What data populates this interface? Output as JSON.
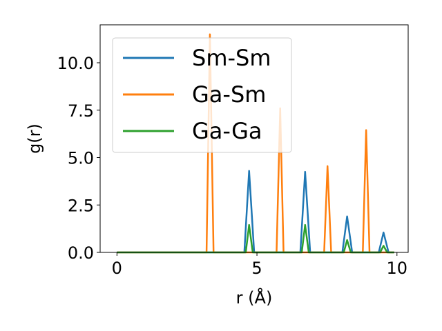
{
  "chart_data": {
    "type": "line",
    "title": "",
    "xlabel": "r (Å)",
    "ylabel": "g(r)",
    "xlim": [
      -0.6,
      10.4
    ],
    "ylim": [
      0,
      12.0
    ],
    "xticks": [
      0,
      5,
      10
    ],
    "xtick_labels": [
      "0",
      "5",
      "10"
    ],
    "yticks": [
      0.0,
      2.5,
      5.0,
      7.5,
      10.0
    ],
    "ytick_labels": [
      "0.0",
      "2.5",
      "5.0",
      "7.5",
      "10.0"
    ],
    "grid": false,
    "legend_position": "top-left",
    "series": [
      {
        "name": "Sm-Sm",
        "color": "#1f77b4",
        "x": [
          0,
          4.55,
          4.72,
          4.9,
          6.55,
          6.72,
          6.9,
          8.05,
          8.22,
          8.4,
          9.35,
          9.52,
          9.7,
          9.9
        ],
        "y": [
          0,
          0,
          4.3,
          0,
          0,
          4.25,
          0,
          0,
          1.9,
          0,
          0,
          1.05,
          0,
          0
        ]
      },
      {
        "name": "Ga-Sm",
        "color": "#ff7f0e",
        "x": [
          0,
          3.2,
          3.32,
          3.45,
          5.7,
          5.83,
          5.95,
          7.4,
          7.52,
          7.65,
          8.78,
          8.9,
          9.02,
          9.9
        ],
        "y": [
          0,
          0,
          11.5,
          0,
          0,
          7.6,
          0,
          0,
          4.55,
          0,
          0,
          6.45,
          0,
          0
        ]
      },
      {
        "name": "Ga-Ga",
        "color": "#2ca02c",
        "x": [
          0,
          4.6,
          4.72,
          4.85,
          6.6,
          6.72,
          6.85,
          8.1,
          8.22,
          8.35,
          9.4,
          9.52,
          9.65,
          9.9
        ],
        "y": [
          0,
          0,
          1.45,
          0,
          0,
          1.45,
          0,
          0,
          0.65,
          0,
          0,
          0.35,
          0,
          0
        ]
      }
    ]
  }
}
